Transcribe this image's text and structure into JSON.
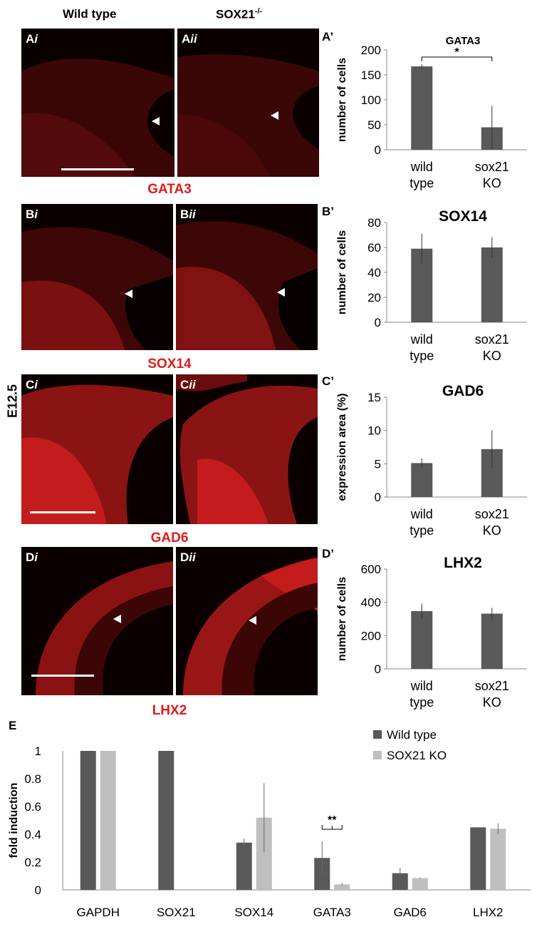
{
  "headers": {
    "wild_type": "Wild type",
    "sox21_main": "SOX21",
    "sox21_sup": "-/-"
  },
  "side_label": "E12.5",
  "panels": [
    {
      "main": "A",
      "sub": "i"
    },
    {
      "main": "A",
      "sub": "ii"
    },
    {
      "main": "B",
      "sub": "i"
    },
    {
      "main": "B",
      "sub": "ii"
    },
    {
      "main": "C",
      "sub": "i"
    },
    {
      "main": "C",
      "sub": "ii"
    },
    {
      "main": "D",
      "sub": "i"
    },
    {
      "main": "D",
      "sub": "ii"
    }
  ],
  "markers": [
    "GATA3",
    "SOX14",
    "GAD6",
    "LHX2"
  ],
  "colors": {
    "marker_red": "#e31a1c",
    "bar_dark": "#595959",
    "bar_light": "#bfbfbf"
  },
  "chart_data": [
    {
      "label": "A’",
      "type": "bar",
      "title": "GATA3",
      "ylabel": "number of cells",
      "ylim": [
        0,
        200
      ],
      "yticks": [
        "0",
        "50",
        "100",
        "150",
        "200"
      ],
      "categories": [
        [
          "wild",
          "type"
        ],
        [
          "sox21",
          "KO"
        ]
      ],
      "values": [
        167,
        45
      ],
      "errors": [
        4,
        43
      ],
      "significance": [
        {
          "from": 0,
          "to": 1,
          "label": "*"
        }
      ]
    },
    {
      "label": "B’",
      "type": "bar",
      "title": "SOX14",
      "ylabel": "number of cells",
      "ylim": [
        0,
        80
      ],
      "yticks": [
        "0",
        "20",
        "40",
        "60",
        "80"
      ],
      "categories": [
        [
          "wild",
          "type"
        ],
        [
          "sox21",
          "KO"
        ]
      ],
      "values": [
        59,
        60
      ],
      "errors": [
        12,
        8
      ]
    },
    {
      "label": "C’",
      "type": "bar",
      "title": "GAD6",
      "ylabel": "expression area (%)",
      "ylim": [
        0,
        15
      ],
      "yticks": [
        "0",
        "5",
        "10",
        "15"
      ],
      "categories": [
        [
          "wild",
          "type"
        ],
        [
          "sox21",
          "KO"
        ]
      ],
      "values": [
        5.1,
        7.2
      ],
      "errors": [
        0.7,
        2.8
      ]
    },
    {
      "label": "D’",
      "type": "bar",
      "title": "LHX2",
      "ylabel": "number of cells",
      "ylim": [
        0,
        600
      ],
      "yticks": [
        "0",
        "200",
        "400",
        "600"
      ],
      "categories": [
        [
          "wild",
          "type"
        ],
        [
          "sox21",
          "KO"
        ]
      ],
      "values": [
        347,
        332
      ],
      "errors": [
        45,
        35
      ]
    },
    {
      "label": "E",
      "type": "bar",
      "ylabel": "fold induction",
      "ylim": [
        0,
        1
      ],
      "yticks": [
        "0",
        "0.2",
        "0.4",
        "0.6",
        "0.8",
        "1"
      ],
      "categories": [
        "GAPDH",
        "SOX21",
        "SOX14",
        "GATA3",
        "GAD6",
        "LHX2"
      ],
      "series": [
        {
          "name": "Wild type",
          "values": [
            1,
            1,
            0.34,
            0.23,
            0.12,
            0.45
          ],
          "errors": [
            0,
            0,
            0.03,
            0.12,
            0.04,
            0
          ]
        },
        {
          "name": "SOX21 KO",
          "values": [
            1,
            0,
            0.52,
            0.04,
            0.085,
            0.44
          ],
          "errors": [
            0,
            0,
            0.25,
            0.01,
            0.005,
            0.04
          ]
        }
      ],
      "significance": [
        {
          "category": 3,
          "label": "**"
        }
      ],
      "legend": "top-right"
    }
  ]
}
